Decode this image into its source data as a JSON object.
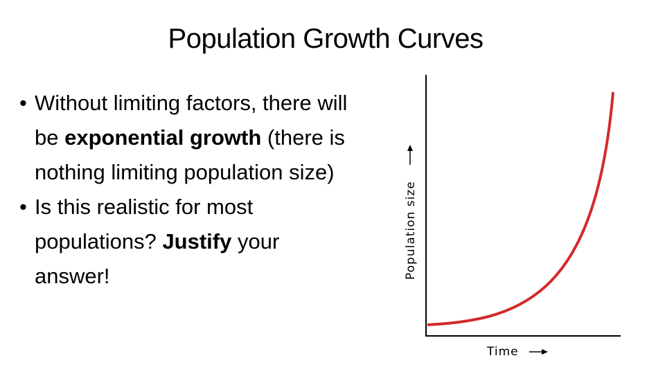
{
  "slide": {
    "title": "Population Growth Curves",
    "bullets": [
      {
        "runs": [
          {
            "text": "Without limiting factors, there will be ",
            "bold": false
          },
          {
            "text": "exponential growth",
            "bold": true
          },
          {
            "text": " (there is nothing limiting population size)",
            "bold": false
          }
        ]
      },
      {
        "runs": [
          {
            "text": "Is this realistic for most populations? ",
            "bold": false
          },
          {
            "text": "Justify",
            "bold": true
          },
          {
            "text": " your answer!",
            "bold": false
          }
        ]
      }
    ],
    "graph": {
      "y_label": "Population size",
      "x_label": "Time"
    }
  }
}
